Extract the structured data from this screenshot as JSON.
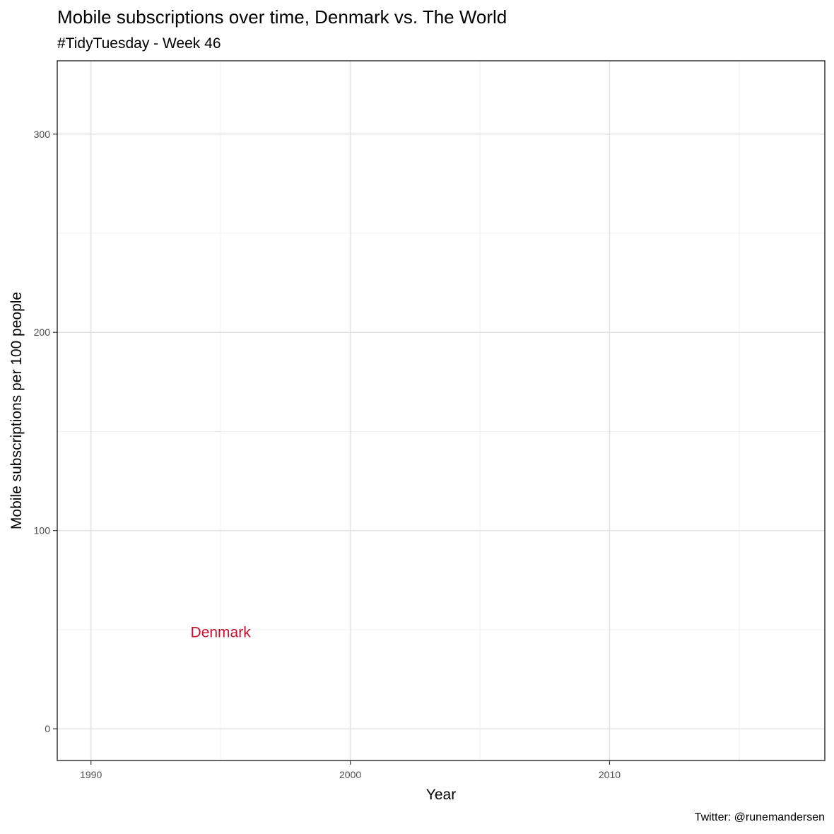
{
  "chart_data": {
    "type": "line",
    "title": "Mobile subscriptions over time, Denmark vs. The World",
    "subtitle": "#TidyTuesday - Week 46",
    "caption": "Twitter: @runemandersen",
    "xlabel": "Year",
    "ylabel": "Mobile subscriptions per 100 people",
    "xlim": [
      1988.7,
      2018.3
    ],
    "ylim": [
      -16,
      337
    ],
    "x_major_ticks": [
      1990,
      2000,
      2010
    ],
    "x_minor_ticks": [
      1995,
      2005,
      2015
    ],
    "y_major_ticks": [
      0,
      100,
      200,
      300
    ],
    "y_minor_ticks": [
      50,
      150,
      250
    ],
    "grid": true,
    "series": [],
    "annotations": [
      {
        "text": "Denmark",
        "x": 1995,
        "y": 49,
        "color": "#c8102e"
      }
    ]
  }
}
